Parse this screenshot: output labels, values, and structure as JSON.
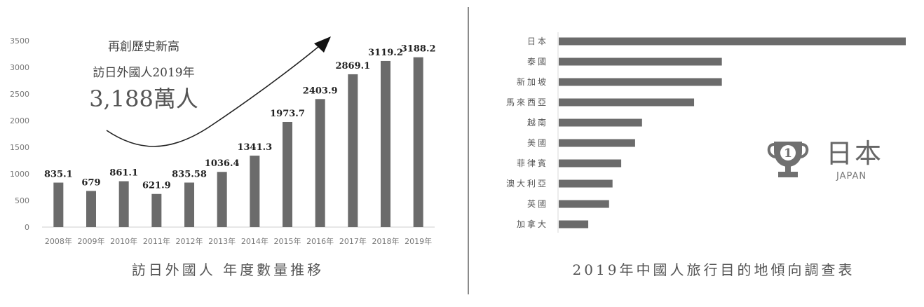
{
  "chart_data": [
    {
      "type": "bar",
      "categories": [
        "2008年",
        "2009年",
        "2010年",
        "2011年",
        "2012年",
        "2013年",
        "2014年",
        "2015年",
        "2016年",
        "2017年",
        "2018年",
        "2019年"
      ],
      "values": [
        835.1,
        679,
        861.1,
        621.9,
        835.58,
        1036.4,
        1341.3,
        1973.7,
        2403.9,
        2869.1,
        3119.2,
        3188.2
      ],
      "value_labels": [
        "835.1",
        "679",
        "861.1",
        "621.9",
        "835.58",
        "1036.4",
        "1341.3",
        "1973.7",
        "2403.9",
        "2869.1",
        "3119.2",
        "3188.2"
      ],
      "yticks": [
        0,
        500,
        1000,
        1500,
        2000,
        2500,
        3000,
        3500
      ],
      "ylim": [
        0,
        3500
      ],
      "title": "訪日外國人 年度數量推移",
      "grid": false,
      "color": "#6b6b6b",
      "annotation": {
        "line1": "再創歷史新高",
        "line2": "訪日外國人2019年",
        "line3": "3,188萬人"
      }
    },
    {
      "type": "bar",
      "orientation": "horizontal",
      "categories": [
        "日本",
        "泰國",
        "新加坡",
        "馬來西亞",
        "越南",
        "美國",
        "菲律賓",
        "澳大利亞",
        "英國",
        "加拿大"
      ],
      "values": [
        100,
        47,
        47,
        39,
        24,
        22,
        18,
        15.5,
        14.5,
        8.5
      ],
      "title": "2019年中國人旅行目的地傾向調查表",
      "xlim": [
        0,
        100
      ],
      "color": "#6b6b6b",
      "badge": {
        "title": "日本",
        "subtitle": "JAPAN",
        "rank": "1",
        "icon": "trophy-icon"
      }
    }
  ]
}
